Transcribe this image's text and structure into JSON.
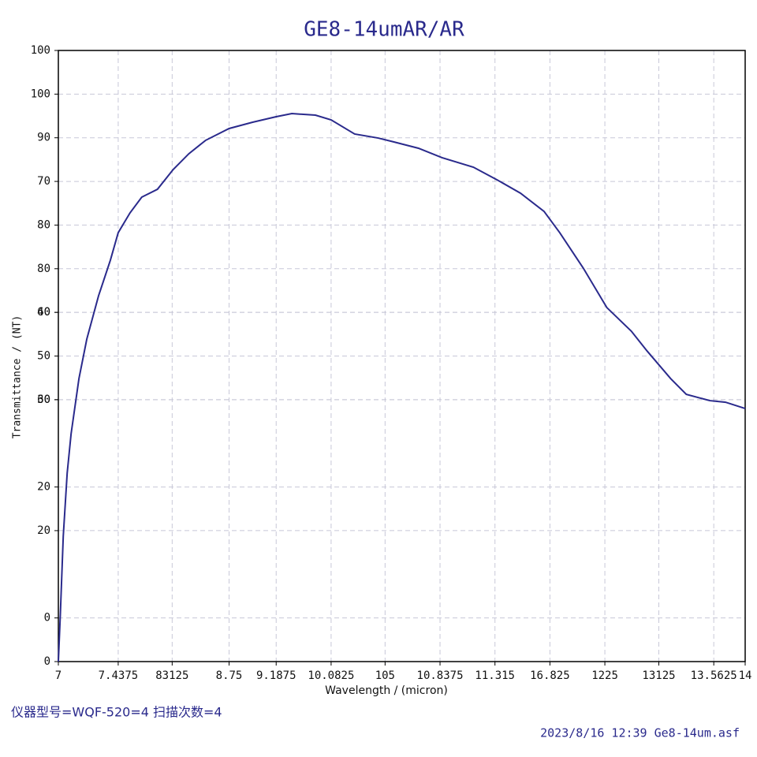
{
  "chart_data": {
    "type": "line",
    "title": "GE8-14umAR/AR",
    "x_label": "Wavelength / (micron)",
    "y_label": "Transmittance / (NT)",
    "footer_left": "仪器型号=WQF-520=4 扫描次数=4",
    "footer_right": "2023/8/16 12:39 Ge8-14um.asf",
    "xlim": [
      7,
      14
    ],
    "ylim": [
      0,
      70
    ],
    "xticks": [
      7,
      {
        "value": 7.61,
        "label": "7.4375"
      },
      {
        "value": 8.16,
        "label": "83125"
      },
      {
        "value": 8.74,
        "label": "8.75"
      },
      {
        "value": 9.22,
        "label": "9.1875"
      },
      {
        "value": 9.78,
        "label": "10.0825"
      },
      {
        "value": 10.33,
        "label": "105"
      },
      {
        "value": 10.89,
        "label": "10.8375"
      },
      {
        "value": 11.45,
        "label": "11.315"
      },
      {
        "value": 12.01,
        "label": "16.825"
      },
      {
        "value": 12.57,
        "label": "1225"
      },
      {
        "value": 13.12,
        "label": "13125"
      },
      {
        "value": 13.68,
        "label": "13.5625"
      },
      14
    ],
    "yticks": [
      0,
      {
        "value": 5,
        "label": "0"
      },
      20,
      {
        "value": 15,
        "label": "20"
      },
      30,
      40,
      {
        "value": 30,
        "label": "60"
      },
      {
        "value": 35,
        "label": "50"
      },
      {
        "value": 40,
        "label": "60"
      },
      {
        "value": 45,
        "label": "80"
      },
      {
        "value": 50,
        "label": "80"
      },
      {
        "value": 55,
        "label": "70"
      },
      {
        "value": 60,
        "label": "90"
      },
      {
        "value": 65,
        "label": "100"
      },
      {
        "value": 70,
        "label": "100"
      }
    ],
    "grid": true,
    "series": [
      {
        "name": "GE8-14umAR/AR",
        "color": "#2a2a8c",
        "x": [
          7,
          7.02,
          7.05,
          7.09,
          7.13,
          7.21,
          7.29,
          7.41,
          7.53,
          7.61,
          7.73,
          7.85,
          8.01,
          8.17,
          8.33,
          8.5,
          8.74,
          8.98,
          9.22,
          9.38,
          9.62,
          9.78,
          10.02,
          10.26,
          10.42,
          10.67,
          10.91,
          11.23,
          11.47,
          11.71,
          11.95,
          12.11,
          12.35,
          12.59,
          12.84,
          13,
          13.24,
          13.4,
          13.64,
          13.8,
          14
        ],
        "values": [
          0,
          5.33,
          14.36,
          21.59,
          26.1,
          32.42,
          36.94,
          41.91,
          45.97,
          49.13,
          51.39,
          53.2,
          54.1,
          56.36,
          58.17,
          59.7,
          61.06,
          61.78,
          62.41,
          62.77,
          62.59,
          62.05,
          60.43,
          59.97,
          59.52,
          58.8,
          57.72,
          56.63,
          55.19,
          53.65,
          51.57,
          49.13,
          45.07,
          40.55,
          37.84,
          35.58,
          32.42,
          30.61,
          29.89,
          29.71,
          28.99
        ]
      }
    ]
  }
}
